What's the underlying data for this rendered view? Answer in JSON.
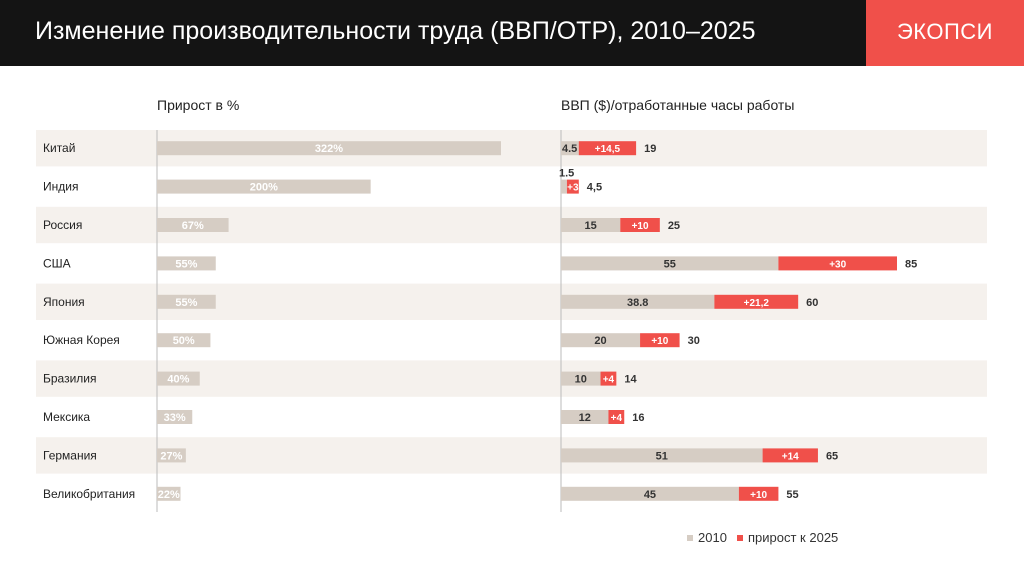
{
  "header": {
    "title": "Изменение производительности труда (ВВП/ОТР), 2010–2025",
    "logo": "ЭКОПСИ"
  },
  "colors": {
    "base": "#d6cdc4",
    "increase": "#f0504a",
    "row_alt": "#f5f1ed",
    "dark": "#141414"
  },
  "chart_data": [
    {
      "type": "bar",
      "title": "Прирост в %",
      "categories": [
        "Китай",
        "Индия",
        "Россия",
        "США",
        "Япония",
        "Южная Корея",
        "Бразилия",
        "Мексика",
        "Германия",
        "Великобритания"
      ],
      "values": [
        322,
        200,
        67,
        55,
        55,
        50,
        40,
        33,
        27,
        22
      ],
      "labels": [
        "322%",
        "200%",
        "67%",
        "55%",
        "55%",
        "50%",
        "40%",
        "33%",
        "27%",
        "22%"
      ]
    },
    {
      "type": "bar",
      "stacked": true,
      "title": "ВВП ($)/отработанные часы работы",
      "categories": [
        "Китай",
        "Индия",
        "Россия",
        "США",
        "Япония",
        "Южная Корея",
        "Бразилия",
        "Мексика",
        "Германия",
        "Великобритания"
      ],
      "series": [
        {
          "name": "2010",
          "values": [
            4.5,
            1.5,
            15,
            55,
            38.8,
            20,
            10,
            12,
            51,
            45
          ],
          "labels": [
            "4.5",
            "1.5",
            "15",
            "55",
            "38.8",
            "20",
            "10",
            "12",
            "51",
            "45"
          ]
        },
        {
          "name": "прирост к 2025",
          "values": [
            14.5,
            3,
            10,
            30,
            21.2,
            10,
            4,
            4,
            14,
            10
          ],
          "labels": [
            "+14,5",
            "+3",
            "+10",
            "+30",
            "+21,2",
            "+10",
            "+4",
            "+4",
            "+14",
            "+10"
          ]
        }
      ],
      "totals": [
        19,
        4.5,
        25,
        85,
        60,
        30,
        14,
        16,
        65,
        55
      ],
      "total_labels": [
        "19",
        "4,5",
        "25",
        "85",
        "60",
        "30",
        "14",
        "16",
        "65",
        "55"
      ]
    }
  ]
}
